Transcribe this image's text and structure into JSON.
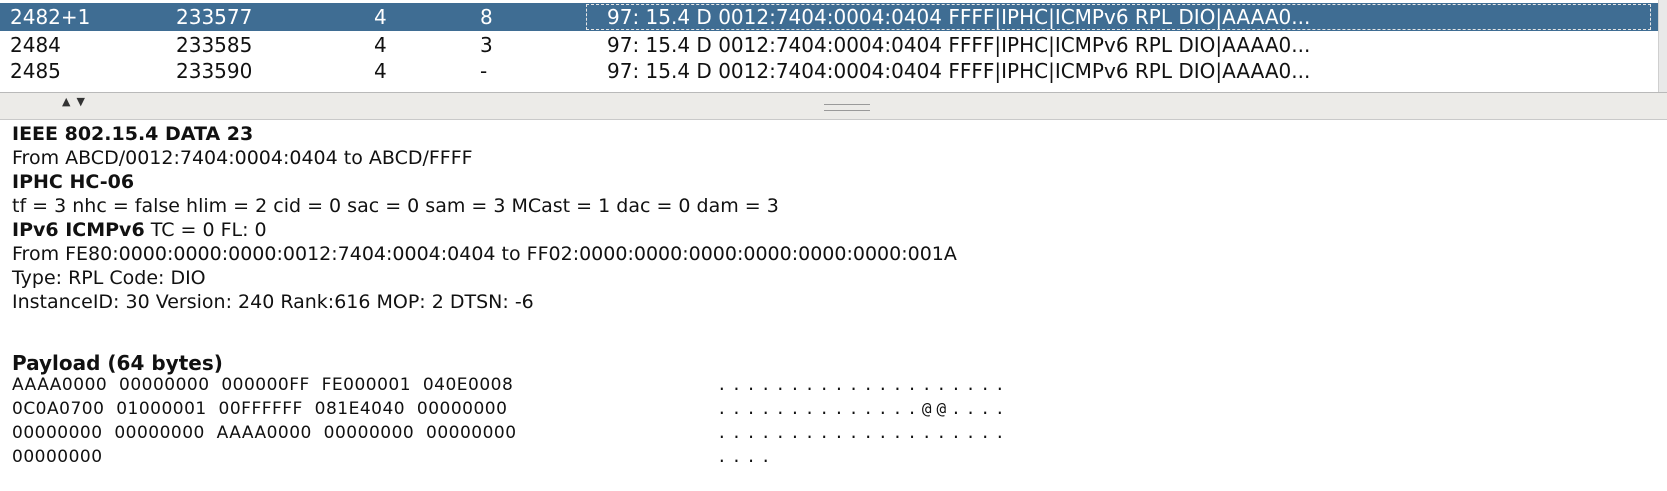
{
  "packet_table": {
    "rows": [
      {
        "no": "2482+1",
        "time": "233577",
        "a": "4",
        "b": "8",
        "info": "97: 15.4 D 0012:7404:0004:0404 FFFF|IPHC|ICMPv6 RPL DIO|AAAA0...",
        "selected": true
      },
      {
        "no": "2484",
        "time": "233585",
        "a": "4",
        "b": "3",
        "info": "97: 15.4 D 0012:7404:0004:0404 FFFF|IPHC|ICMPv6 RPL DIO|AAAA0...",
        "selected": false
      },
      {
        "no": "2485",
        "time": "233590",
        "a": "4",
        "b": "-",
        "info": "97: 15.4 D 0012:7404:0004:0404 FFFF|IPHC|ICMPv6 RPL DIO|AAAA0...",
        "selected": false
      }
    ]
  },
  "splitter": {
    "arrows": "▲▼"
  },
  "detail": {
    "ieee_title": "IEEE 802.15.4 DATA 23",
    "ieee_from": "From ABCD/0012:7404:0004:0404 to ABCD/FFFF",
    "iphc_title": "IPHC HC-06",
    "iphc_fields": "tf = 3 nhc = false hlim = 2 cid = 0 sac = 0 sam = 3 MCast = 1 dac = 0 dam = 3",
    "ipv6_title": "IPv6 ICMPv6",
    "ipv6_extra": " TC = 0 FL: 0",
    "ipv6_from": "From FE80:0000:0000:0000:0012:7404:0004:0404 to FF02:0000:0000:0000:0000:0000:0000:001A",
    "type_line": "Type: RPL Code: DIO",
    "instance_line": "InstanceID: 30 Version: 240 Rank:616 MOP: 2 DTSN: -6"
  },
  "payload": {
    "title": "Payload (64 bytes)",
    "rows": [
      {
        "words": "AAAA0000  00000000  000000FF  FE000001  040E0008",
        "ascii": "...................."
      },
      {
        "words": "0C0A0700  01000001  00FFFFFF  081E4040  00000000",
        "ascii": "..............@@...."
      },
      {
        "words": "00000000  00000000  AAAA0000  00000000  00000000",
        "ascii": "...................."
      },
      {
        "words": "00000000",
        "ascii": "...."
      }
    ]
  },
  "colors": {
    "selection": "#3f6d93",
    "splitter": "#ecebe8"
  }
}
